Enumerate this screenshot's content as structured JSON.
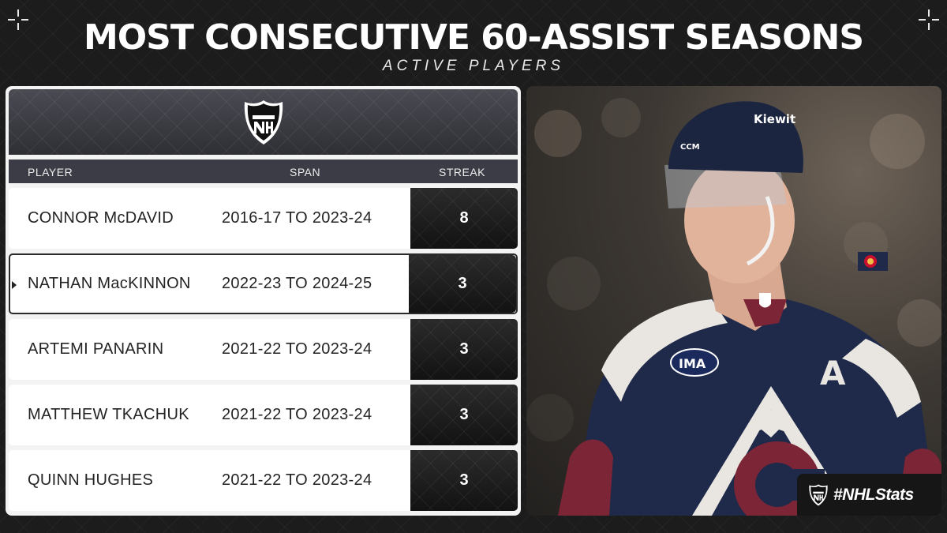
{
  "header": {
    "title": "MOST CONSECUTIVE 60-ASSIST SEASONS",
    "subtitle": "ACTIVE PLAYERS"
  },
  "table": {
    "logo": "nhl-shield-icon",
    "columns": {
      "player": "PLAYER",
      "span": "SPAN",
      "streak": "STREAK"
    },
    "rows": [
      {
        "player": "CONNOR McDAVID",
        "span": "2016-17 TO 2023-24",
        "streak": "8"
      },
      {
        "player": "NATHAN MacKINNON",
        "span": "2022-23 TO 2024-25",
        "streak": "3"
      },
      {
        "player": "ARTEMI PANARIN",
        "span": "2021-22 TO 2023-24",
        "streak": "3"
      },
      {
        "player": "MATTHEW TKACHUK",
        "span": "2021-22 TO 2023-24",
        "streak": "3"
      },
      {
        "player": "QUINN HUGHES",
        "span": "2021-22 TO 2023-24",
        "streak": "3"
      }
    ]
  },
  "photo": {
    "helmet_text": "Kiewit",
    "helmet_brand": "CCM",
    "jersey_patch": "IMA",
    "captain_letter": "A"
  },
  "footer": {
    "hashtag": "#NHLStats"
  },
  "colors": {
    "background": "#1c1c1c",
    "panel": "#f3f3f3",
    "header_band": "#3b3c45",
    "streak_box": "#1c1c1c",
    "jersey_navy": "#1f2a4a",
    "jersey_burgundy": "#7b2536"
  }
}
